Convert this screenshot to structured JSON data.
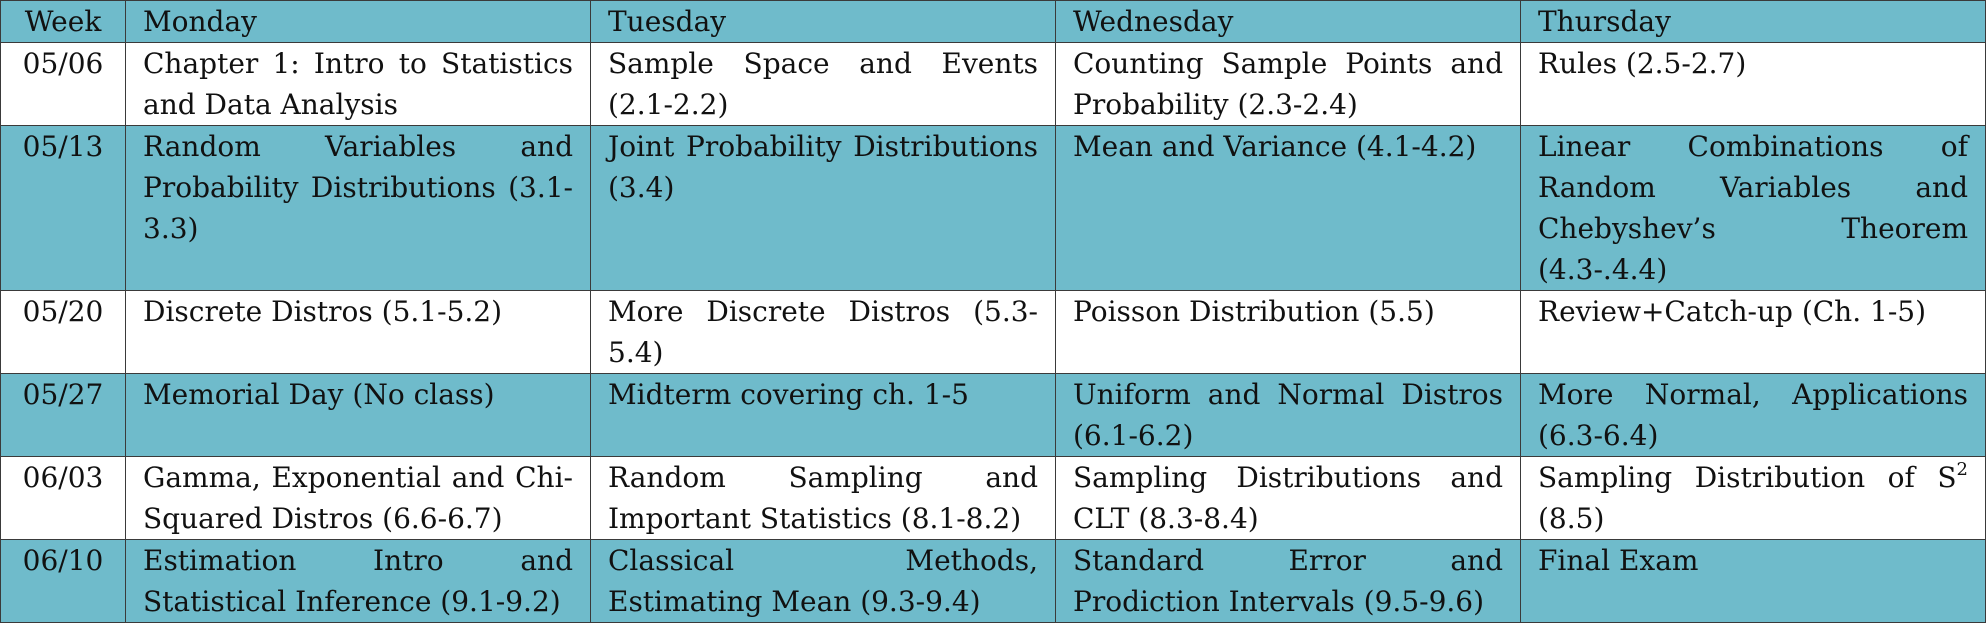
{
  "header": {
    "week": "Week",
    "monday": "Monday",
    "tuesday": "Tuesday",
    "wednesday": "Wednesday",
    "thursday": "Thursday"
  },
  "rows": [
    {
      "week": "05/06",
      "monday": "Chapter 1: Intro to Statistics and Data Analysis",
      "tuesday": "Sample Space and Events (2.1-2.2)",
      "wednesday": "Counting Sample Points and Probability (2.3-2.4)",
      "thursday": "Rules (2.5-2.7)"
    },
    {
      "week": "05/13",
      "monday": "Random Variables and Probability Distributions (3.1-3.3)",
      "tuesday": "Joint Probability Distributions (3.4)",
      "wednesday": "Mean and Variance (4.1-4.2)",
      "thursday": "Linear Combinations of Random Variables and Chebyshev’s Theorem (4.3-.4.4)"
    },
    {
      "week": "05/20",
      "monday": "Discrete Distros (5.1-5.2)",
      "tuesday": "More Discrete Distros (5.3-5.4)",
      "wednesday": "Poisson Distribution (5.5)",
      "thursday": "Review+Catch-up (Ch. 1-5)"
    },
    {
      "week": "05/27",
      "monday": "Memorial Day (No class)",
      "tuesday": "Midterm covering ch. 1-5",
      "wednesday": "Uniform and Normal Distros (6.1-6.2)",
      "thursday": "More Normal, Applications (6.3-6.4)"
    },
    {
      "week": "06/03",
      "monday": "Gamma, Exponential and Chi-Squared Distros (6.6-6.7)",
      "tuesday": "Random Sampling and Important Statistics (8.1-8.2)",
      "wednesday": "Sampling Distributions and CLT (8.3-8.4)",
      "thursday_prefix": "Sampling Distribution of S",
      "thursday_sup": "2",
      "thursday_suffix": " (8.5)"
    },
    {
      "week": "06/10",
      "monday": "Estimation Intro and Statistical Inference (9.1-9.2)",
      "tuesday": "Classical Methods, Estimating Mean (9.3-9.4)",
      "wednesday": "Standard Error and Prodiction Intervals (9.5-9.6)",
      "thursday": "Final Exam"
    }
  ],
  "colors": {
    "teal_row": "#6fbbcb",
    "white_row": "#ffffff",
    "border": "#3a3a3a"
  }
}
